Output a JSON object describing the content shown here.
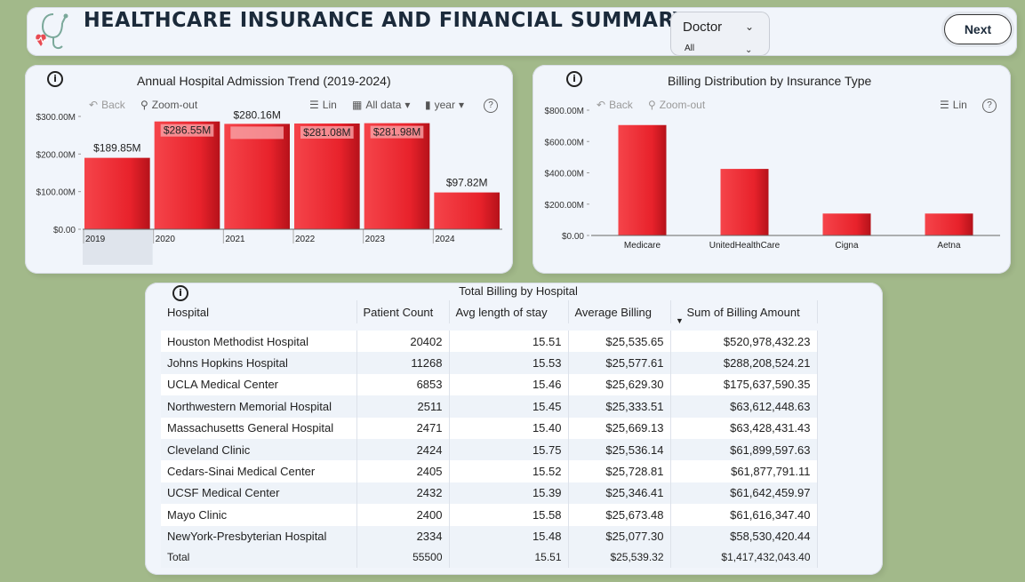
{
  "header": {
    "title": "HEALTHCARE INSURANCE AND FINANCIAL SUMMARY",
    "logo_icon": "stethoscope-heart-icon",
    "slicer": {
      "label": "Doctor",
      "value": "All"
    },
    "next_label": "Next"
  },
  "admission_chart": {
    "info_icon": "i",
    "toolbar": {
      "back": "Back",
      "zoom_out": "Zoom-out",
      "lin": "Lin",
      "all_data": "All data",
      "year": "year",
      "help": "?"
    },
    "chart_data": {
      "type": "bar",
      "title": "Annual Hospital Admission Trend (2019-2024)",
      "categories": [
        "2019",
        "2020",
        "2021",
        "2022",
        "2023",
        "2024"
      ],
      "values": [
        189.85,
        286.55,
        280.16,
        281.08,
        281.98,
        97.82
      ],
      "value_labels": [
        "$189.85M",
        "$286.55M",
        "$280.16M",
        "$281.08M",
        "$281.98M",
        "$97.82M"
      ],
      "y_ticks": [
        "$300.00M",
        "$200.00M",
        "$100.00M",
        "$0.00"
      ],
      "ylim": [
        0,
        300
      ],
      "xlabel": "",
      "ylabel": "",
      "color": "#e8222b"
    }
  },
  "billing_chart": {
    "info_icon": "i",
    "toolbar": {
      "back": "Back",
      "zoom_out": "Zoom-out",
      "lin": "Lin",
      "help": "?"
    },
    "chart_data": {
      "type": "bar",
      "title": "Billing Distribution by Insurance Type",
      "categories": [
        "Medicare",
        "UnitedHealthCare",
        "Cigna",
        "Aetna"
      ],
      "values": [
        705,
        425,
        140,
        140
      ],
      "y_ticks": [
        "$800.00M",
        "$600.00M",
        "$400.00M",
        "$200.00M",
        "$0.00"
      ],
      "ylim": [
        0,
        800
      ],
      "xlabel": "",
      "ylabel": "",
      "color": "#e8222b"
    }
  },
  "billing_table": {
    "title": "Total Billing by Hospital",
    "info_icon": "i",
    "columns": [
      "Hospital",
      "Patient Count",
      "Avg length of stay",
      "Average Billing",
      "Sum of Billing Amount"
    ],
    "rows": [
      [
        "Houston Methodist Hospital",
        "20402",
        "15.51",
        "$25,535.65",
        "$520,978,432.23"
      ],
      [
        "Johns Hopkins Hospital",
        "11268",
        "15.53",
        "$25,577.61",
        "$288,208,524.21"
      ],
      [
        "UCLA Medical Center",
        "6853",
        "15.46",
        "$25,629.30",
        "$175,637,590.35"
      ],
      [
        "Northwestern Memorial Hospital",
        "2511",
        "15.45",
        "$25,333.51",
        "$63,612,448.63"
      ],
      [
        "Massachusetts General Hospital",
        "2471",
        "15.40",
        "$25,669.13",
        "$63,428,431.43"
      ],
      [
        "Cleveland Clinic",
        "2424",
        "15.75",
        "$25,536.14",
        "$61,899,597.63"
      ],
      [
        "Cedars-Sinai Medical Center",
        "2405",
        "15.52",
        "$25,728.81",
        "$61,877,791.11"
      ],
      [
        "UCSF Medical Center",
        "2432",
        "15.39",
        "$25,346.41",
        "$61,642,459.97"
      ],
      [
        "Mayo Clinic",
        "2400",
        "15.58",
        "$25,673.48",
        "$61,616,347.40"
      ],
      [
        "NewYork-Presbyterian Hospital",
        "2334",
        "15.48",
        "$25,077.30",
        "$58,530,420.44"
      ]
    ],
    "total": [
      "Total",
      "55500",
      "15.51",
      "$25,539.32",
      "$1,417,432,043.40"
    ]
  }
}
